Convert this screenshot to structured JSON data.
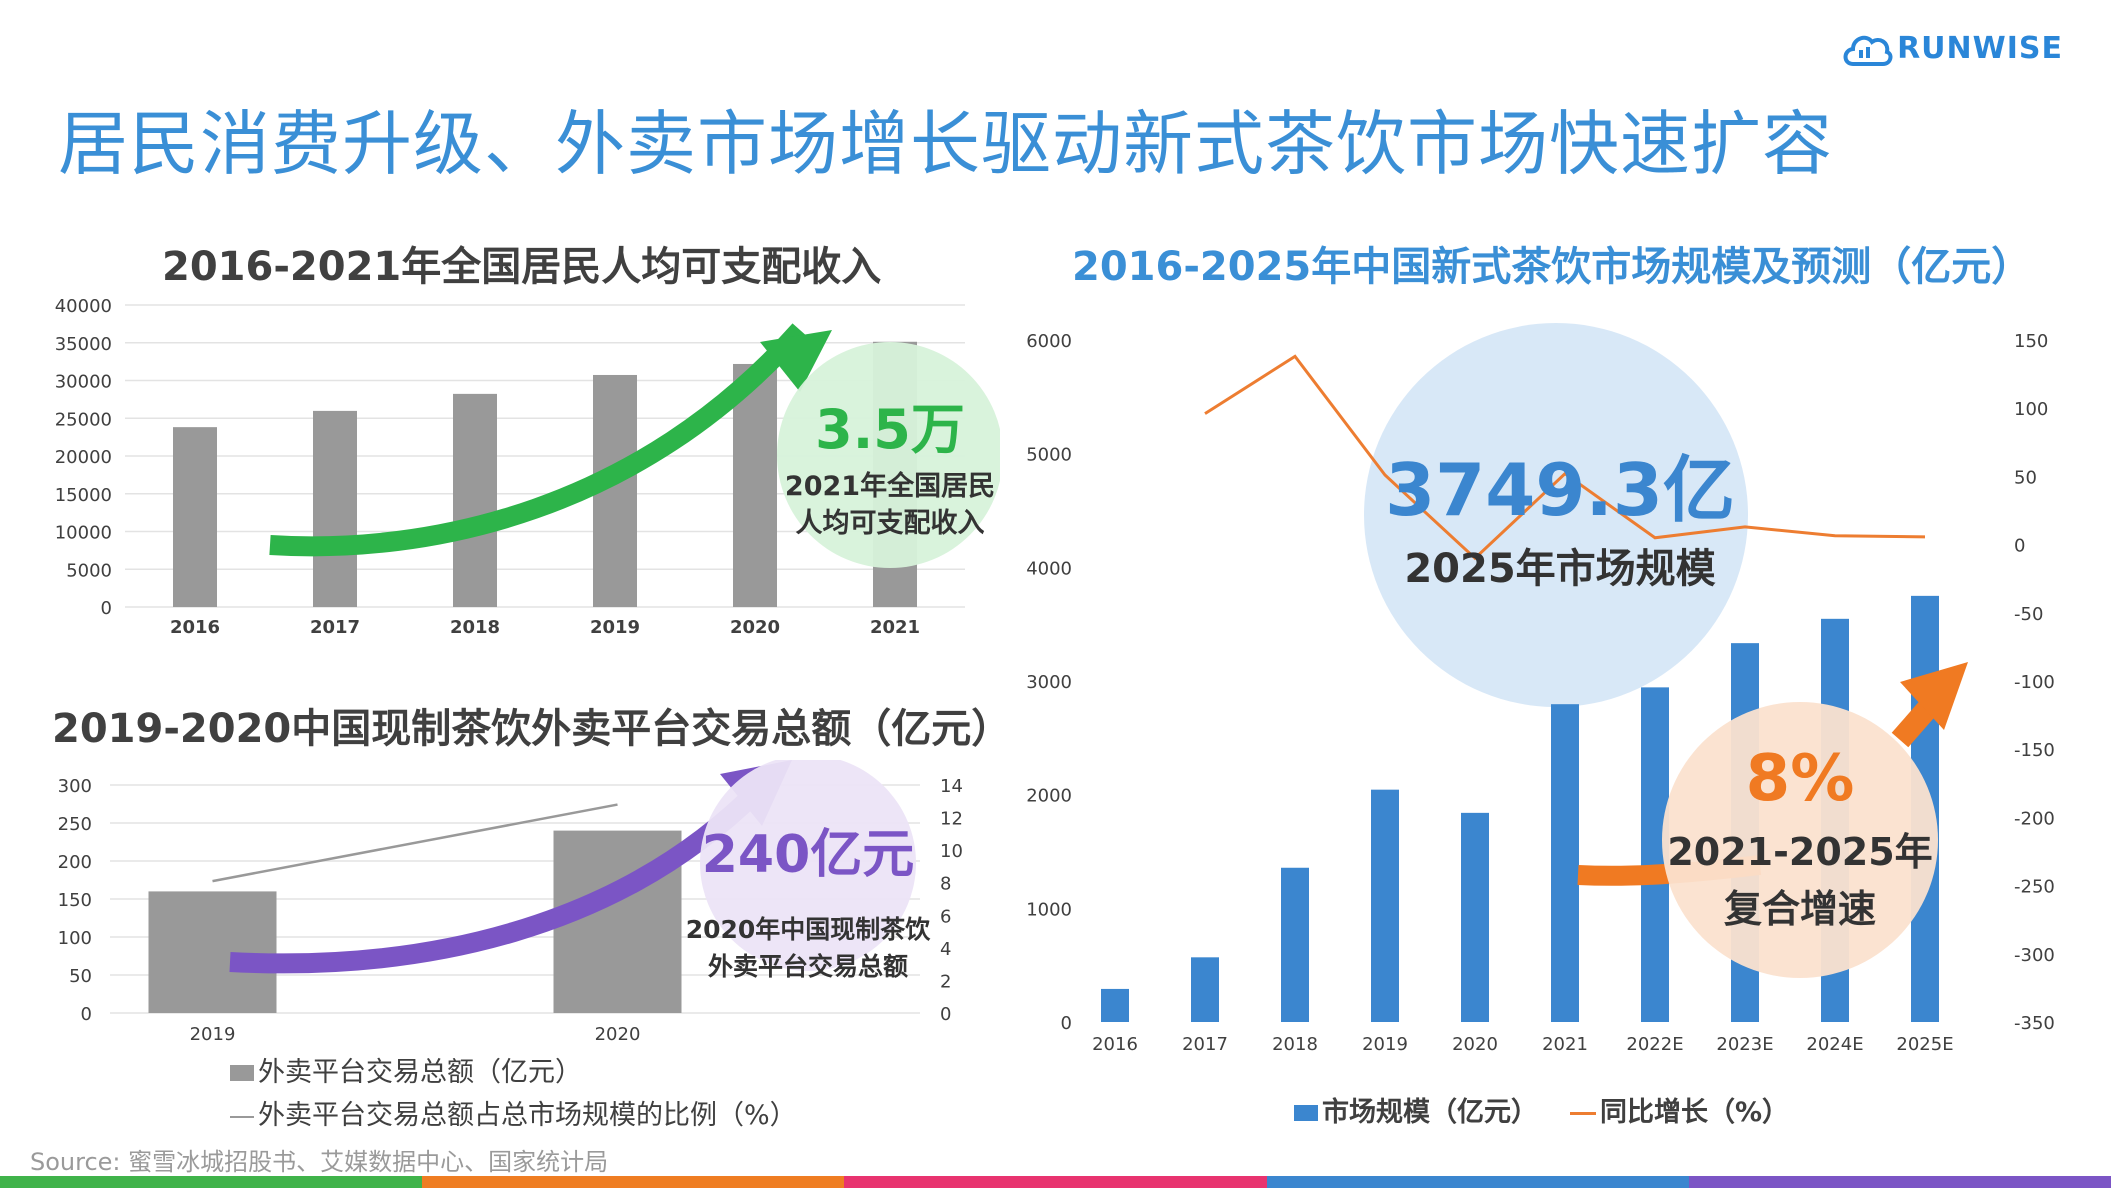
{
  "header": {
    "title": "居民消费升级、外卖市场增长驱动新式茶饮市场快速扩容",
    "logo_text": "RUNWISE"
  },
  "source": "Source: 蜜雪冰城招股书、艾媒数据中心、国家统计局",
  "colors": {
    "title_blue": "#3a8fd6",
    "bar_gray": "#999999",
    "bar_blue": "#3b86cf",
    "line_orange": "#ed7d31",
    "green": "#2db44a",
    "purple": "#7b55c5",
    "orange_arrow": "#f07a22",
    "bottom_bar": [
      "#40b34a",
      "#ef7d22",
      "#e8336f",
      "#3b86cf",
      "#7b55c5"
    ]
  },
  "callouts": {
    "income": {
      "value": "3.5万",
      "line1": "2021年全国居民",
      "line2": "人均可支配收入"
    },
    "delivery": {
      "value": "240亿元",
      "line1": "2020年中国现制茶饮",
      "line2": "外卖平台交易总额"
    },
    "market": {
      "value": "3749.3亿",
      "label": "2025年市场规模"
    },
    "cagr": {
      "value": "8%",
      "line1": "2021-2025年",
      "line2": "复合增速"
    }
  },
  "chart_data": [
    {
      "type": "bar",
      "title": "2016-2021年全国居民人均可支配收入",
      "categories": [
        "2016",
        "2017",
        "2018",
        "2019",
        "2020",
        "2021"
      ],
      "values": [
        23821,
        25974,
        28228,
        30733,
        32189,
        35128
      ],
      "ylim": [
        0,
        40000
      ],
      "yticks": [
        0,
        5000,
        10000,
        15000,
        20000,
        25000,
        30000,
        35000,
        40000
      ],
      "grid": true
    },
    {
      "type": "bar",
      "title": "2019-2020中国现制茶饮外卖平台交易总额（亿元）",
      "categories": [
        "2019",
        "2020"
      ],
      "series": [
        {
          "name": "外卖平台交易总额（亿元）",
          "type": "bar",
          "axis": "left",
          "values": [
            160,
            240
          ]
        },
        {
          "name": "外卖平台交易总额占总市场规模的比例（%）",
          "type": "line",
          "axis": "right",
          "values": [
            8.1,
            12.8
          ]
        }
      ],
      "ylim": [
        0,
        300
      ],
      "yticks": [
        0,
        50,
        100,
        150,
        200,
        250,
        300
      ],
      "y2lim": [
        0,
        14
      ],
      "y2ticks": [
        0,
        2,
        4,
        6,
        8,
        10,
        12,
        14
      ],
      "legend": {
        "bar_label": "外卖平台交易总额（亿元）",
        "line_label": "外卖平台交易总额占总市场规模的比例（%）",
        "position": "bottom"
      },
      "grid": true
    },
    {
      "type": "bar",
      "title": "2016-2025年中国新式茶饮市场规模及预测（亿元）",
      "categories": [
        "2016",
        "2017",
        "2018",
        "2019",
        "2020",
        "2021",
        "2022E",
        "2023E",
        "2024E",
        "2025E"
      ],
      "series": [
        {
          "name": "市场规模（亿元）",
          "type": "bar",
          "axis": "left",
          "values": [
            291,
            569,
            1357,
            2044,
            1840,
            2796,
            2944,
            3333,
            3547,
            3749
          ]
        },
        {
          "name": "同比增长（%）",
          "type": "line",
          "axis": "right",
          "values": [
            null,
            96,
            138,
            51,
            -10,
            52,
            5,
            13,
            6.5,
            5.7
          ]
        }
      ],
      "ylim": [
        0,
        6000
      ],
      "yticks": [
        0,
        1000,
        2000,
        3000,
        4000,
        5000,
        6000
      ],
      "y2lim": [
        -350,
        150
      ],
      "y2ticks": [
        -350,
        -300,
        -250,
        -200,
        -150,
        -100,
        -50,
        0,
        50,
        100,
        150
      ],
      "legend": {
        "bar_label": "市场规模（亿元）",
        "line_label": "同比增长（%）",
        "position": "bottom"
      },
      "grid": false
    }
  ]
}
